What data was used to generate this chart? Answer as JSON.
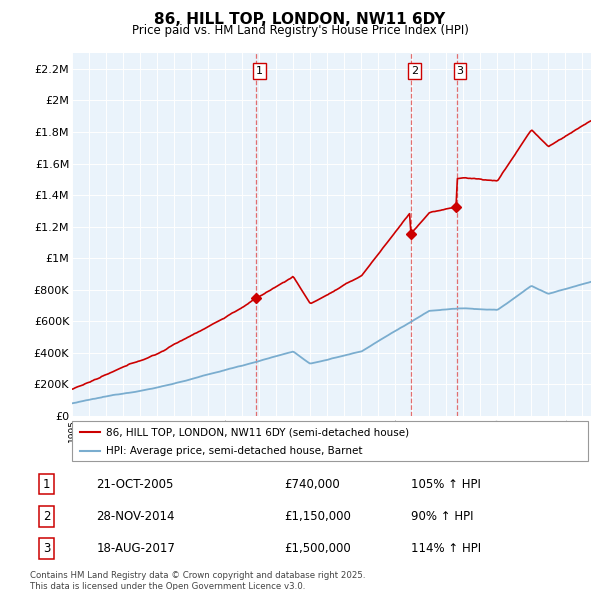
{
  "title": "86, HILL TOP, LONDON, NW11 6DY",
  "subtitle": "Price paid vs. HM Land Registry's House Price Index (HPI)",
  "legend_line1": "86, HILL TOP, LONDON, NW11 6DY (semi-detached house)",
  "legend_line2": "HPI: Average price, semi-detached house, Barnet",
  "footnote": "Contains HM Land Registry data © Crown copyright and database right 2025.\nThis data is licensed under the Open Government Licence v3.0.",
  "transactions": [
    {
      "num": 1,
      "date": "21-OCT-2005",
      "price": 740000,
      "hpi_pct": "105%",
      "x": 2005.8
    },
    {
      "num": 2,
      "date": "28-NOV-2014",
      "price": 1150000,
      "hpi_pct": "90%",
      "x": 2014.9
    },
    {
      "num": 3,
      "date": "18-AUG-2017",
      "price": 1500000,
      "hpi_pct": "114%",
      "x": 2017.6
    }
  ],
  "red_color": "#cc0000",
  "blue_color": "#7aadcf",
  "dashed_color": "#e06060",
  "bg_color": "#ffffff",
  "chart_bg_color": "#eaf3fb",
  "grid_color": "#ffffff",
  "ylim": [
    0,
    2300000
  ],
  "yticks": [
    0,
    200000,
    400000,
    600000,
    800000,
    1000000,
    1200000,
    1400000,
    1600000,
    1800000,
    2000000,
    2200000
  ],
  "xmin": 1995,
  "xmax": 2025.5,
  "table_rows": [
    {
      "num": "1",
      "date": "21-OCT-2005",
      "price": "£740,000",
      "hpi": "105% ↑ HPI"
    },
    {
      "num": "2",
      "date": "28-NOV-2014",
      "price": "£1,150,000",
      "hpi": "90% ↑ HPI"
    },
    {
      "num": "3",
      "date": "18-AUG-2017",
      "price": "£1,500,000",
      "hpi": "114% ↑ HPI"
    }
  ]
}
